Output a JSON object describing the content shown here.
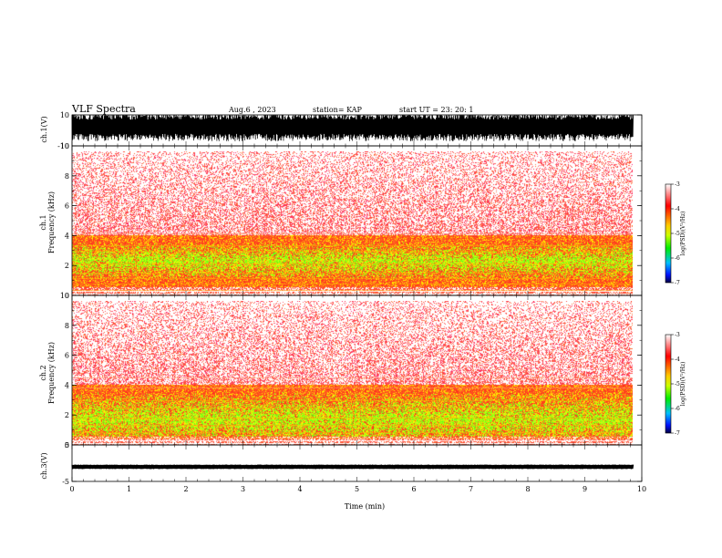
{
  "header": {
    "title": "VLF Spectra",
    "date": "Aug.6 , 2023",
    "station": "station= KAP",
    "start": "start UT =  23: 20: 1"
  },
  "chart_data": [
    {
      "type": "line",
      "name": "ch1-waveform",
      "ylabel": "ch.1(V)",
      "ylim": [
        -10,
        10
      ],
      "yticks": [
        "10",
        "-10"
      ],
      "xlim": [
        0,
        10
      ],
      "note_level_range": [
        -5,
        10
      ]
    },
    {
      "type": "heatmap",
      "name": "ch1-spectrogram",
      "ylabel": "ch.1 Frequency (kHz)",
      "ylim": [
        0,
        10
      ],
      "yticks": [
        "0",
        "2",
        "4",
        "6",
        "8",
        "10"
      ],
      "xlim": [
        0,
        10
      ],
      "data_end_min": 9.85,
      "colorbar": {
        "label": "log(PSD)(V²/Hz)",
        "range": [
          -7,
          -3
        ],
        "ticks": [
          "-3",
          "-4",
          "-5",
          "-6",
          "-7"
        ]
      }
    },
    {
      "type": "heatmap",
      "name": "ch2-spectrogram",
      "ylabel": "ch.2 Frequency (kHz)",
      "ylim": [
        0,
        10
      ],
      "yticks": [
        "0",
        "2",
        "4",
        "6",
        "8",
        "10"
      ],
      "xlim": [
        0,
        10
      ],
      "data_end_min": 9.85,
      "colorbar": {
        "label": "log(PSD)(V²/Hz)",
        "range": [
          -7,
          -3
        ],
        "ticks": [
          "-3",
          "-4",
          "-5",
          "-6",
          "-7"
        ]
      }
    },
    {
      "type": "line",
      "name": "ch3-waveform",
      "ylabel": "ch.3(V)",
      "ylim": [
        -5,
        5
      ],
      "yticks": [
        "5",
        "-5"
      ],
      "xlim": [
        0,
        10
      ],
      "level_range": [
        -1.5,
        -0.5
      ],
      "xlabel": "Time (min)",
      "xticks": [
        "0",
        "1",
        "2",
        "3",
        "4",
        "5",
        "6",
        "7",
        "8",
        "9",
        "10"
      ]
    }
  ],
  "labels": {
    "ch1_ylabel_top": "ch.1(V)",
    "spec1_ylabel_a": "ch.1",
    "spec1_ylabel_b": "Frequency (kHz)",
    "spec2_ylabel_a": "ch.2",
    "spec2_ylabel_b": "Frequency (kHz)",
    "ch3_ylabel": "ch.3(V)",
    "cb_label": "log(PSD)(V²/Hz)",
    "xlabel": "Time (min)"
  },
  "colors": {
    "background": "#ffffff",
    "axes": "#000000",
    "waveform": "#000000"
  }
}
